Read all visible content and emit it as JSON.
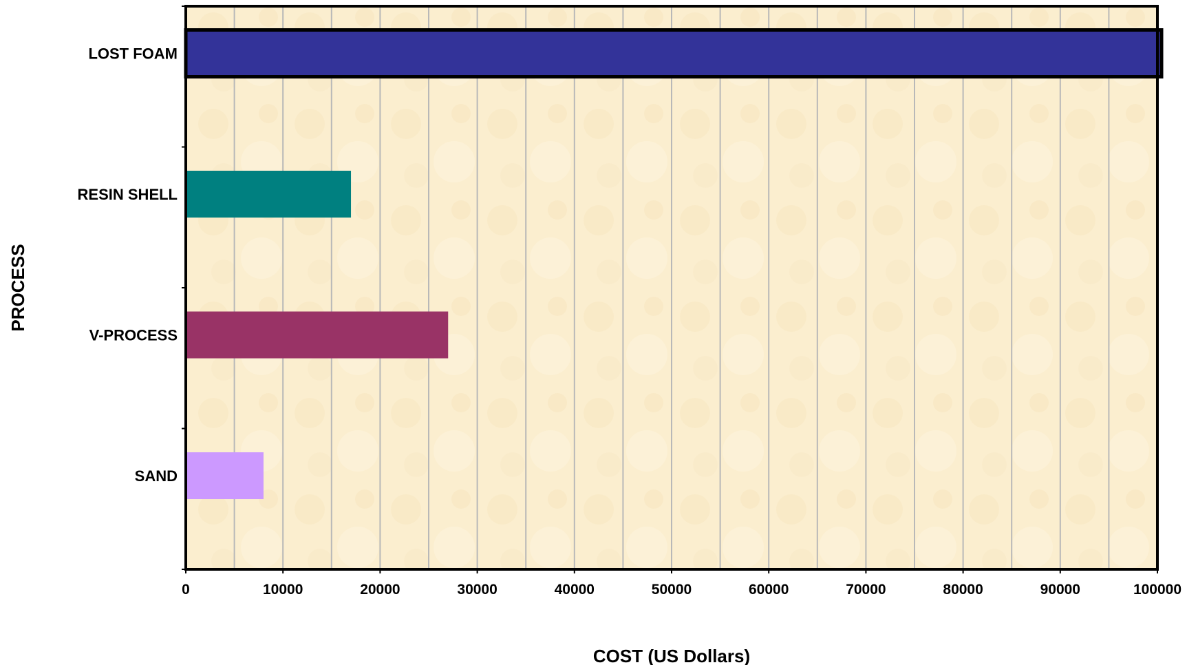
{
  "chart_data": {
    "type": "bar",
    "orientation": "horizontal",
    "categories": [
      "LOST FOAM",
      "RESIN SHELL",
      "V-PROCESS",
      "SAND"
    ],
    "values": [
      100000,
      17000,
      27000,
      8000
    ],
    "colors": [
      "#333399",
      "#008080",
      "#993366",
      "#cc99ff"
    ],
    "xlabel": "COST (US Dollars)",
    "ylabel": "PROCESS",
    "xlim": [
      0,
      100000
    ],
    "xticks": [
      "0",
      "10000",
      "20000",
      "30000",
      "40000",
      "50000",
      "60000",
      "70000",
      "80000",
      "90000",
      "100000"
    ],
    "gridlines": "vertical",
    "plot_background": "#fbeecf",
    "highlight_outline": "LOST FOAM"
  }
}
